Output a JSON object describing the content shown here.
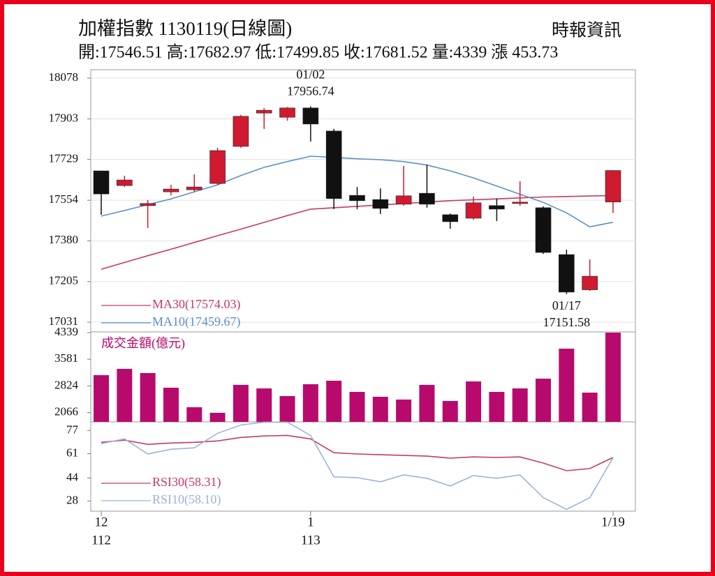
{
  "chart_data": [
    {
      "type": "candlestick",
      "title": "加權指數 1130119(日線圖)",
      "source": "時報資訊",
      "subtitle": "開:17546.51 高:17682.97 低:17499.85 收:17681.52 量:4339 漲 453.73",
      "ylim": [
        17031,
        18078
      ],
      "yticks": [
        18078,
        17903,
        17729,
        17554,
        17380,
        17205,
        17031
      ],
      "grid": true,
      "up_color": "#d01a30",
      "down_color": "#111111",
      "open": [
        17680,
        17617,
        17531,
        17590,
        17599,
        17626,
        17785,
        17928,
        17910,
        17950,
        17851,
        17575,
        17557,
        17537,
        17584,
        17492,
        17477,
        17531,
        17543,
        17522,
        17321,
        17170,
        17546.51
      ],
      "high": [
        17680,
        17659,
        17555,
        17620,
        17665,
        17779,
        17920,
        17949,
        17954,
        17956.74,
        17860,
        17611,
        17605,
        17701,
        17707,
        17497,
        17570,
        17561,
        17635,
        17528,
        17342,
        17300,
        17682.97
      ],
      "low": [
        17492,
        17611,
        17435,
        17575,
        17590,
        17620,
        17779,
        17860,
        17895,
        17806,
        17516,
        17516,
        17495,
        17531,
        17522,
        17432,
        17470,
        17465,
        17531,
        17324,
        17151.58,
        17165,
        17499.85
      ],
      "close": [
        17581,
        17641,
        17540,
        17602,
        17611,
        17767,
        17914,
        17940,
        17950,
        17881,
        17561,
        17552,
        17519,
        17573,
        17537,
        17462,
        17543,
        17516,
        17546,
        17330,
        17160,
        17228,
        17681.52
      ],
      "series": [
        {
          "name": "MA30(17574.03)",
          "color": "#c8376a",
          "values": [
            17258,
            17287,
            17316,
            17344,
            17373,
            17402,
            17430,
            17459,
            17488,
            17516,
            17522,
            17528,
            17534,
            17540,
            17546,
            17552,
            17556,
            17560,
            17564,
            17568,
            17570,
            17572,
            17574.03
          ]
        },
        {
          "name": "MA10(17459.67)",
          "color": "#5b8fc7",
          "values": [
            17486,
            17510,
            17535,
            17560,
            17590,
            17620,
            17660,
            17695,
            17720,
            17743,
            17738,
            17732,
            17728,
            17720,
            17705,
            17680,
            17650,
            17615,
            17580,
            17545,
            17500,
            17440,
            17459.67
          ]
        }
      ],
      "annotations": [
        {
          "label": "01/02",
          "value": 17956.74
        },
        {
          "label": "01/17",
          "value": 17151.58
        }
      ]
    },
    {
      "type": "bar",
      "label": "成交金額(億元)",
      "color": "#b80a6c",
      "ylim": [
        1800,
        4339
      ],
      "yticks": [
        4339,
        3581,
        2824,
        2066
      ],
      "values": [
        3129,
        3308,
        3189,
        2772,
        2217,
        2058,
        2852,
        2752,
        2534,
        2871,
        2971,
        2653,
        2514,
        2435,
        2852,
        2395,
        2951,
        2653,
        2752,
        3030,
        3883,
        2633,
        4339
      ]
    },
    {
      "type": "line",
      "ylim": [
        21,
        83
      ],
      "yticks": [
        77,
        61,
        44,
        28
      ],
      "categories": [
        "12",
        null,
        null,
        null,
        null,
        null,
        null,
        null,
        null,
        "1",
        null,
        null,
        null,
        null,
        null,
        null,
        null,
        null,
        null,
        null,
        null,
        null,
        "1/19"
      ],
      "year_labels": [
        "112",
        null,
        null,
        null,
        null,
        null,
        null,
        null,
        null,
        "113",
        null,
        null,
        null,
        null,
        null,
        null,
        null,
        null,
        null,
        null,
        null,
        null,
        null
      ],
      "series": [
        {
          "name": "RSI30(58.31)",
          "color": "#c8376a",
          "values": [
            68.8,
            70.3,
            67.4,
            68.3,
            68.8,
            69.8,
            72.2,
            73.2,
            73.6,
            71.2,
            61.6,
            60.7,
            60.2,
            59.7,
            59.2,
            57.8,
            58.7,
            58.3,
            58.7,
            54.4,
            49.1,
            50.6,
            58.31
          ]
        },
        {
          "name": "RSI10(58.10)",
          "color": "#9ab4d6",
          "values": [
            67.9,
            71.2,
            60.7,
            64.0,
            65.0,
            75.1,
            80.8,
            82.8,
            82.8,
            73.6,
            44.8,
            44.3,
            41.4,
            46.2,
            43.8,
            38.5,
            45.7,
            43.8,
            46.2,
            30.4,
            22.2,
            30.4,
            58.1
          ]
        }
      ]
    }
  ]
}
